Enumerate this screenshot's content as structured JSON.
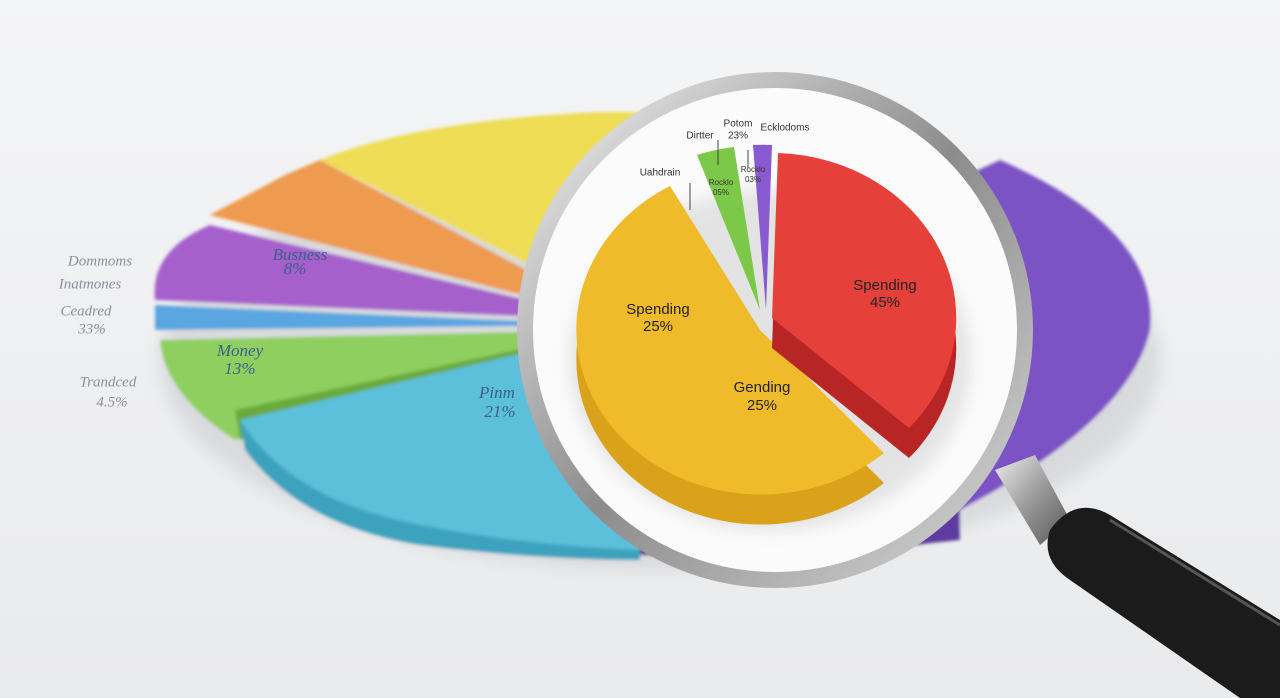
{
  "background_pie": {
    "labels": [
      "Trandced",
      "4.5%",
      "Ceadred",
      "33%",
      "Dommoms",
      "Inatmones",
      "Money",
      "13%",
      "Pinm",
      "21%",
      "Busness",
      "8%"
    ]
  },
  "magnified_pie": {
    "callouts": [
      "Uahdrain",
      "Dirtter",
      "Potom",
      "23%",
      "Ecklodoms",
      "Rocklo",
      "05%",
      "Rocklo",
      "03%"
    ],
    "slices": [
      {
        "name": "Spending",
        "percent": "45%"
      },
      {
        "name": "Spending",
        "percent": "25%"
      },
      {
        "name": "Gending",
        "percent": "25%"
      }
    ]
  }
}
